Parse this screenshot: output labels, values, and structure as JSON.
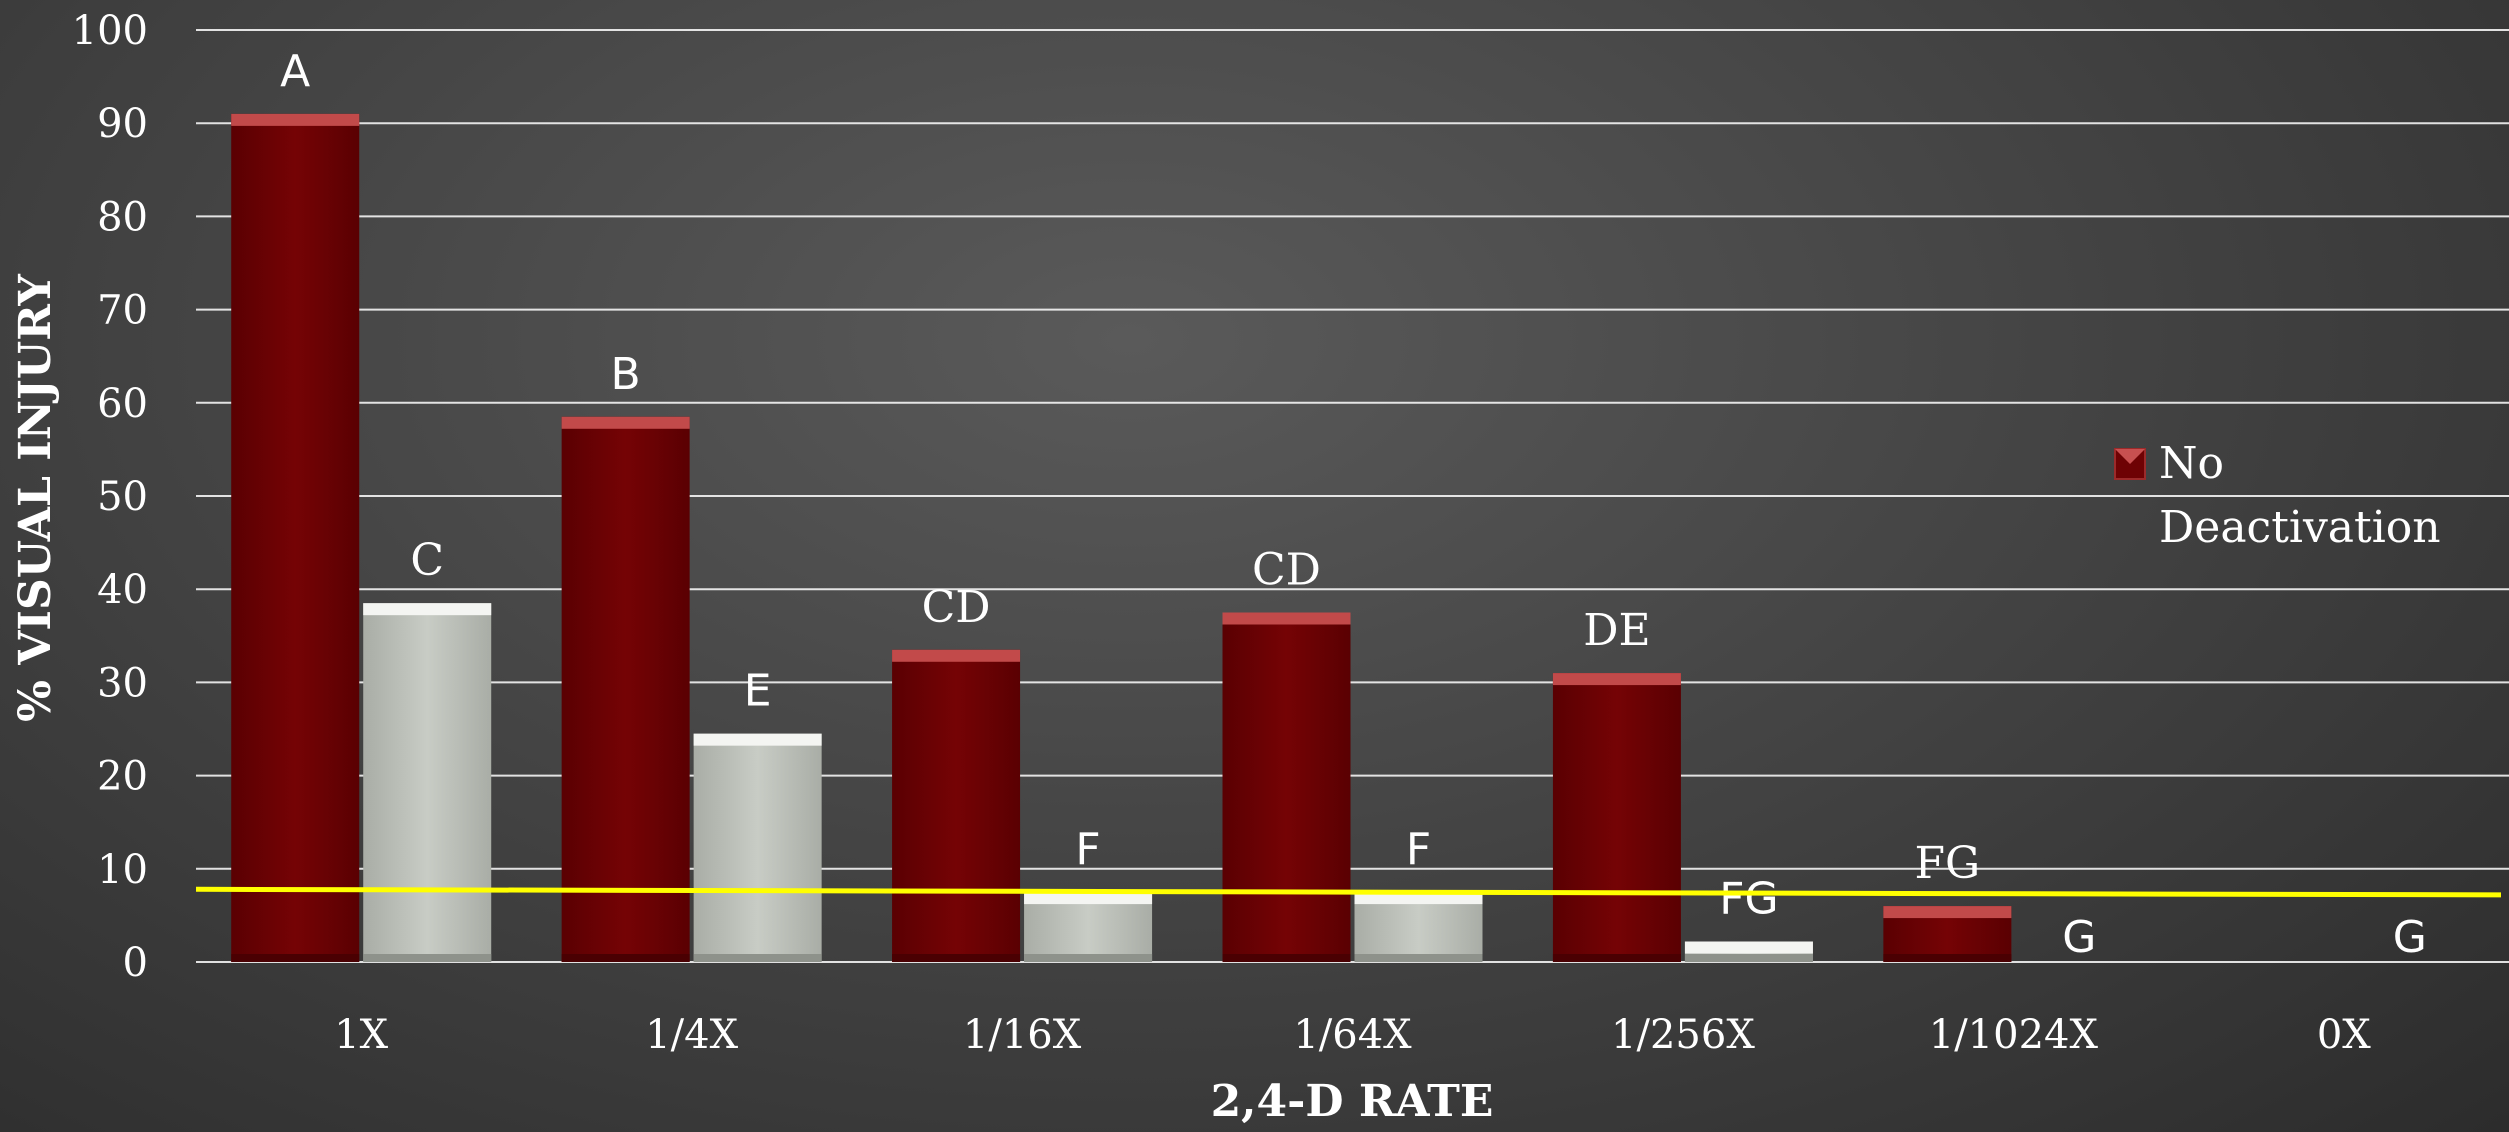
{
  "chart_data": {
    "type": "bar",
    "xlabel": "2,4-D RATE",
    "ylabel": "% VISUAL INJURY",
    "ylim": [
      0,
      100
    ],
    "yticks": [
      0,
      10,
      20,
      30,
      40,
      50,
      60,
      70,
      80,
      90,
      100
    ],
    "grid": true,
    "legend_position": "right",
    "categories": [
      "1X",
      "1/4X",
      "1/16X",
      "1/64X",
      "1/256X",
      "1/1024X",
      "0X"
    ],
    "series": [
      {
        "name": "No Deactivation",
        "color": "#6e0204",
        "values": [
          91,
          58.5,
          33.5,
          37.5,
          31,
          6,
          0
        ],
        "labels": [
          "A",
          "B",
          "CD",
          "CD",
          "DE",
          "FG",
          ""
        ]
      },
      {
        "name": "",
        "color": "#c4c8c1",
        "values": [
          38.5,
          24.5,
          7.5,
          7.5,
          2.2,
          0,
          0
        ],
        "labels": [
          "C",
          "E",
          "F",
          "F",
          "FG",
          "G",
          "G"
        ]
      }
    ],
    "reference_line": {
      "color": "#ffff00",
      "y_start": 7.8,
      "y_end": 7.2
    }
  }
}
